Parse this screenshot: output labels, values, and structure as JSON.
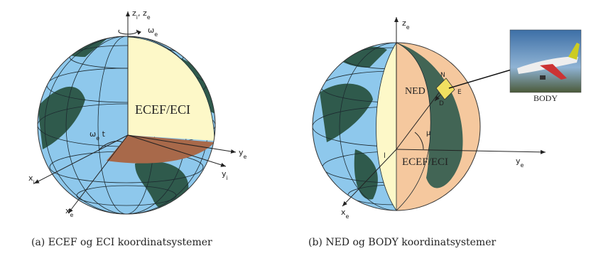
{
  "figure_a": {
    "caption": "(a) ECEF og ECI koordinatsystemer",
    "z_label": [
      {
        "text": "z"
      },
      {
        "sub": "i"
      },
      {
        "text": ", z"
      },
      {
        "sub": "e"
      }
    ],
    "omega_label": [
      {
        "text": "ω"
      },
      {
        "sub": "e"
      }
    ],
    "frame_label": [
      {
        "text": "ECEF/ECI"
      }
    ],
    "angle_label": [
      {
        "text": "ω"
      },
      {
        "sub": "e"
      },
      {
        "text": " t"
      }
    ],
    "ye_label": [
      {
        "text": "y"
      },
      {
        "sub": "e"
      }
    ],
    "xi_label": [
      {
        "text": "x"
      },
      {
        "sub": "i"
      }
    ],
    "yi_label": [
      {
        "text": "y"
      },
      {
        "sub": "i"
      }
    ],
    "xe_label": [
      {
        "text": "x"
      },
      {
        "sub": "e"
      }
    ]
  },
  "figure_b": {
    "caption": "(b) NED og BODY koordinatsystemer",
    "ze_label": [
      {
        "text": "z"
      },
      {
        "sub": "e"
      }
    ],
    "ned_label": [
      {
        "text": "NED"
      }
    ],
    "n_label": [
      {
        "text": "N"
      }
    ],
    "e_label": [
      {
        "text": "E"
      }
    ],
    "d_label": [
      {
        "text": "D"
      }
    ],
    "mu_label": [
      {
        "text": "μ"
      }
    ],
    "l_label": [
      {
        "text": "l"
      }
    ],
    "frame_label": [
      {
        "text": "ECEF/ECI"
      }
    ],
    "ye_label": [
      {
        "text": "y"
      },
      {
        "sub": "e"
      }
    ],
    "xe_label": [
      {
        "text": "x"
      },
      {
        "sub": "e"
      }
    ],
    "body_label": [
      {
        "text": "BODY"
      }
    ]
  }
}
